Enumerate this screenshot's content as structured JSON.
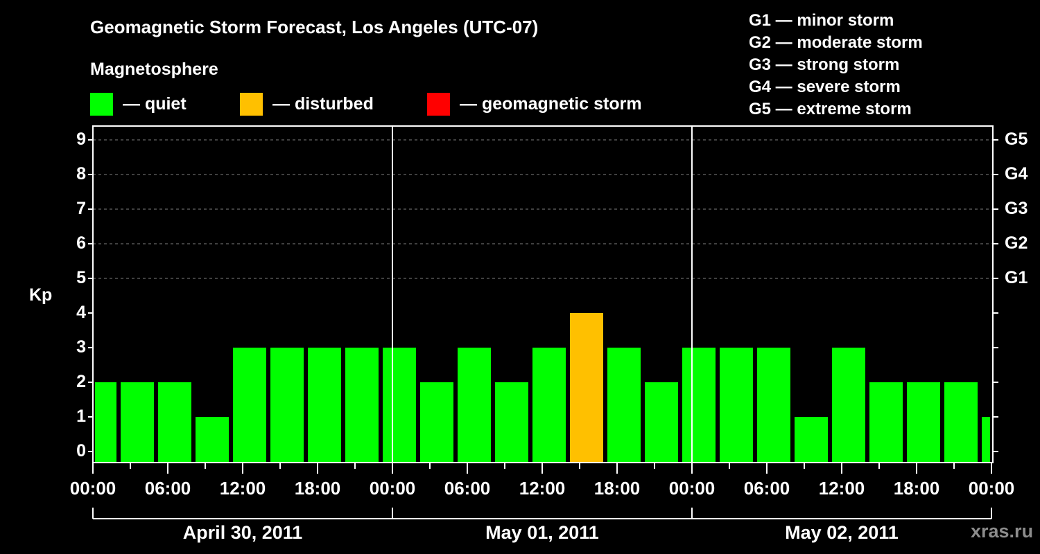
{
  "header": {
    "title": "Geomagnetic Storm Forecast, Los Angeles (UTC-07)",
    "subtitle": "Magnetosphere"
  },
  "legend": [
    {
      "label": "— quiet",
      "color": "#00ff00"
    },
    {
      "label": "— disturbed",
      "color": "#ffc000"
    },
    {
      "label": "— geomagnetic storm",
      "color": "#ff0000"
    }
  ],
  "g_scale": [
    "G1 — minor storm",
    "G2 — moderate storm",
    "G3 — strong storm",
    "G4 — severe storm",
    "G5 — extreme storm"
  ],
  "axes": {
    "ylabel": "Kp",
    "yticks": [
      "0",
      "1",
      "2",
      "3",
      "4",
      "5",
      "6",
      "7",
      "8",
      "9"
    ],
    "gticks": [
      "G1",
      "G2",
      "G3",
      "G4",
      "G5"
    ],
    "xticks": [
      "00:00",
      "06:00",
      "12:00",
      "18:00",
      "00:00",
      "06:00",
      "12:00",
      "18:00",
      "00:00",
      "06:00",
      "12:00",
      "18:00",
      "00:00"
    ],
    "dates": [
      "April 30, 2011",
      "May 01, 2011",
      "May 02, 2011"
    ]
  },
  "watermark": "xras.ru",
  "colors": {
    "quiet": "#00ff00",
    "disturbed": "#ffc000",
    "storm": "#ff0000",
    "grid": "#808080",
    "axis": "#ffffff"
  },
  "chart_data": {
    "type": "bar",
    "title": "Geomagnetic Storm Forecast, Los Angeles (UTC-07)",
    "subtitle": "Magnetosphere",
    "xlabel": "",
    "ylabel": "Kp",
    "ylim": [
      0,
      9
    ],
    "secondary_y_ticks": {
      "5": "G1",
      "6": "G2",
      "7": "G3",
      "8": "G4",
      "9": "G5"
    },
    "grid": "dashed horizontal at Kp 5-9",
    "x_ticks": [
      "00:00",
      "06:00",
      "12:00",
      "18:00",
      "00:00",
      "06:00",
      "12:00",
      "18:00",
      "00:00",
      "06:00",
      "12:00",
      "18:00",
      "00:00"
    ],
    "day_labels": [
      "April 30, 2011",
      "May 01, 2011",
      "May 02, 2011"
    ],
    "bar_interval_hours": 3,
    "categories": [
      "Apr30 ~00:00 (partial)",
      "Apr30 ~02:30",
      "Apr30 ~05:30",
      "Apr30 ~08:30",
      "Apr30 ~11:30",
      "Apr30 ~14:30",
      "Apr30 ~17:30",
      "Apr30 ~20:30",
      "Apr30 ~23:30",
      "May01 ~02:30",
      "May01 ~05:30",
      "May01 ~08:30",
      "May01 ~11:30",
      "May01 ~14:30",
      "May01 ~17:30",
      "May01 ~20:30",
      "May01 ~23:30",
      "May02 ~02:30",
      "May02 ~05:30",
      "May02 ~08:30",
      "May02 ~11:30",
      "May02 ~14:30",
      "May02 ~17:30",
      "May02 ~20:30",
      "May02 ~23:30 (partial)"
    ],
    "values": [
      2,
      2,
      2,
      1,
      3,
      3,
      3,
      3,
      3,
      2,
      3,
      2,
      3,
      4,
      3,
      2,
      3,
      3,
      3,
      1,
      3,
      2,
      2,
      2,
      1
    ],
    "status": [
      "quiet",
      "quiet",
      "quiet",
      "quiet",
      "quiet",
      "quiet",
      "quiet",
      "quiet",
      "quiet",
      "quiet",
      "quiet",
      "quiet",
      "quiet",
      "disturbed",
      "quiet",
      "quiet",
      "quiet",
      "quiet",
      "quiet",
      "quiet",
      "quiet",
      "quiet",
      "quiet",
      "quiet",
      "quiet"
    ],
    "legend": [
      "quiet",
      "disturbed",
      "geomagnetic storm"
    ]
  }
}
